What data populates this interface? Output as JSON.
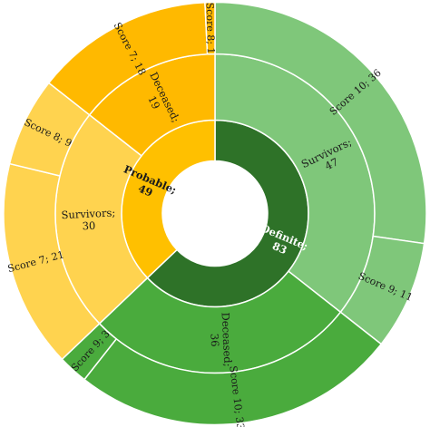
{
  "chart_data": {
    "type": "sunburst",
    "title": "",
    "rings": [
      {
        "level": 1,
        "segments": [
          {
            "name": "Definite",
            "value": 83,
            "label": "Definite;",
            "value_label": "83",
            "color": "#2e7228"
          },
          {
            "name": "Probable",
            "value": 49,
            "label": "Probable;",
            "value_label": "49",
            "color": "#ffc000"
          }
        ]
      },
      {
        "level": 2,
        "segments": [
          {
            "name": "Survivors",
            "parent": "Definite",
            "value": 47,
            "label": "Survivors;",
            "value_label": "47",
            "color": "#7fc77a"
          },
          {
            "name": "Deceased",
            "parent": "Definite",
            "value": 36,
            "label": "Deceased;",
            "value_label": "36",
            "color": "#4aab3d"
          },
          {
            "name": "Survivors",
            "parent": "Probable",
            "value": 30,
            "label": "Survivors;",
            "value_label": "30",
            "color": "#ffd34f"
          },
          {
            "name": "Deceased",
            "parent": "Probable",
            "value": 19,
            "label": "Deceased;",
            "value_label": "19",
            "color": "#ffb900"
          }
        ]
      },
      {
        "level": 3,
        "segments": [
          {
            "name": "Score 10",
            "parent": "Definite/Survivors",
            "value": 36,
            "label": "Score 10; 36",
            "color": "#7fc77a"
          },
          {
            "name": "Score 9",
            "parent": "Definite/Survivors",
            "value": 11,
            "label": "Score 9; 11",
            "color": "#7fc77a"
          },
          {
            "name": "Score 10",
            "parent": "Definite/Deceased",
            "value": 33,
            "label": "Score 10; 33",
            "color": "#4aab3d"
          },
          {
            "name": "Score 9",
            "parent": "Definite/Deceased",
            "value": 3,
            "label": "Score 9; 3",
            "color": "#4aab3d"
          },
          {
            "name": "Score 7",
            "parent": "Probable/Survivors",
            "value": 21,
            "label": "Score 7; 21",
            "color": "#ffd34f"
          },
          {
            "name": "Score 8",
            "parent": "Probable/Survivors",
            "value": 9,
            "label": "Score 8; 9",
            "color": "#ffd34f"
          },
          {
            "name": "Score 7",
            "parent": "Probable/Deceased",
            "value": 18,
            "label": "Score 7; 18",
            "color": "#ffb900"
          },
          {
            "name": "Score 8",
            "parent": "Probable/Deceased",
            "value": 1,
            "label": "Score 8; 1",
            "color": "#ffb900"
          }
        ]
      }
    ]
  }
}
